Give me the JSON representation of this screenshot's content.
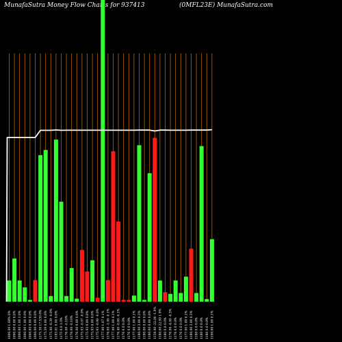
{
  "header": {
    "title": "MunafaSutra  Money Flow  Charts for 937413",
    "code": "(0MFL23E) MunafaSutra.com"
  },
  "colors": {
    "background": "#000000",
    "up": "#33ff33",
    "down": "#ff1a1a",
    "gridline": "#b86a00",
    "price_line": "#ffffff"
  },
  "chart_data": {
    "type": "bar",
    "grid": true,
    "bars": [
      {
        "label": "1000.00 1.00% 0%",
        "direction": "up",
        "value": 49
      },
      {
        "label": "1000.00 0.00 0.0%",
        "direction": "up",
        "value": 100
      },
      {
        "label": "1000.00 1.00 1.0%",
        "direction": "up",
        "value": 49
      },
      {
        "label": "1000.00 1.00 0.0%",
        "direction": "up",
        "value": 33
      },
      {
        "label": "1000.00 0.00 0.0%",
        "direction": "up",
        "value": 4
      },
      {
        "label": "1000.00 0.09 0.0%",
        "direction": "down",
        "value": 50
      },
      {
        "label": "1175.39 17.539 8%",
        "direction": "up",
        "value": 340
      },
      {
        "label": "1175.39 0.00 0.0%",
        "direction": "up",
        "value": 352
      },
      {
        "label": "1175.00 -0.39 -0.0%",
        "direction": "up",
        "value": 13
      },
      {
        "label": "1183.01 0.00 0.0%",
        "direction": "up",
        "value": 376
      },
      {
        "label": "1175 0.0 1.0%",
        "direction": "up",
        "value": 232
      },
      {
        "label": "1176.00 -0.10%",
        "direction": "up",
        "value": 13
      },
      {
        "label": "1176.00 -0.10%",
        "direction": "up",
        "value": 78
      },
      {
        "label": "1176.00 0.00 0.0%",
        "direction": "up",
        "value": 7
      },
      {
        "label": "1175.93 -0.07 -0.0%",
        "direction": "down",
        "value": 120
      },
      {
        "label": "1175.93 0.00 0.0%",
        "direction": "down",
        "value": 70
      },
      {
        "label": "1175.93 0.00 0.0%",
        "direction": "up",
        "value": 96
      },
      {
        "label": "1175.93 -0.90 -0.0%",
        "direction": "down",
        "value": 9
      },
      {
        "label": "1177.00 1.07 0.1%",
        "direction": "up",
        "value": 700
      },
      {
        "label": "1176.00 -1.00 -0.1%",
        "direction": "down",
        "value": 50
      },
      {
        "label": "1177.00 1.00 0.1%",
        "direction": "down",
        "value": 349
      },
      {
        "label": "1176.40 -0.60 -0.1%",
        "direction": "down",
        "value": 186
      },
      {
        "label": "1176 0.0 0.0%",
        "direction": "down",
        "value": 4
      },
      {
        "label": "1176 0.0 0.0%",
        "direction": "down",
        "value": 4
      },
      {
        "label": "1177.00 1.00 0.1%",
        "direction": "up",
        "value": 14
      },
      {
        "label": "1180.00 3.00 0.3%",
        "direction": "up",
        "value": 363
      },
      {
        "label": "1180.00 0.00 0.0%",
        "direction": "up",
        "value": 4
      },
      {
        "label": "1180.00 0.00 0.0%",
        "direction": "up",
        "value": 298
      },
      {
        "label": "1158.00 -22.00 -1.9%",
        "direction": "down",
        "value": 380
      },
      {
        "label": "1180.00 22.00 1.9%",
        "direction": "up",
        "value": 49
      },
      {
        "label": "1180 0.0 0.0%",
        "direction": "down",
        "value": 22
      },
      {
        "label": "1176.00 -4.00 -0.3%",
        "direction": "up",
        "value": 18
      },
      {
        "label": "1176 0.0 0.0%",
        "direction": "up",
        "value": 49
      },
      {
        "label": "1176 0.0 0.0%",
        "direction": "up",
        "value": 20
      },
      {
        "label": "1177.00 1.00 0.1%",
        "direction": "up",
        "value": 58
      },
      {
        "label": "1180.00 3.00 0.3%",
        "direction": "down",
        "value": 123
      },
      {
        "label": "1180 0.0 0.0%",
        "direction": "up",
        "value": 20
      },
      {
        "label": "1180 0.0 0.0%",
        "direction": "up",
        "value": 361
      },
      {
        "label": "1180 0.0 0.0%",
        "direction": "up",
        "value": 6
      },
      {
        "label": "1190.00 1.00 0.1%",
        "direction": "up",
        "value": 145
      }
    ],
    "price_line": [
      1000,
      1000,
      1000,
      1000,
      1000,
      1000,
      1175.39,
      1175.39,
      1175,
      1183.01,
      1175,
      1176,
      1176,
      1176,
      1175.93,
      1175.93,
      1175.93,
      1175.93,
      1177,
      1176,
      1177,
      1176.4,
      1176,
      1176,
      1177,
      1180,
      1180,
      1180,
      1158,
      1180,
      1180,
      1176,
      1176,
      1176,
      1177,
      1180,
      1180,
      1180,
      1180,
      1190
    ]
  }
}
